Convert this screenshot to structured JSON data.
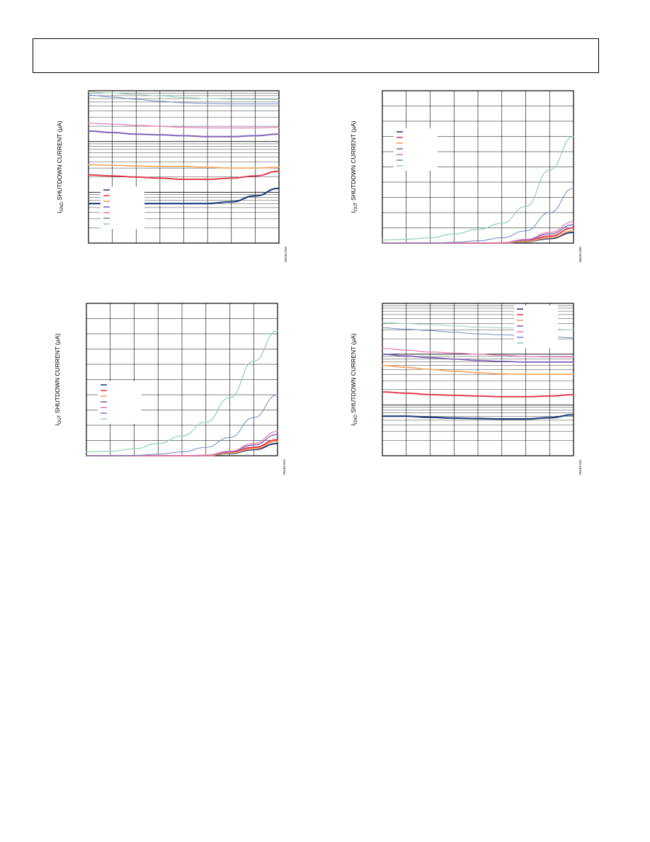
{
  "header": {
    "text": ""
  },
  "chart_data": [
    {
      "id": "chart-1",
      "type": "line",
      "ylabel_main": "I",
      "ylabel_sub": "GND",
      "ylabel_rest": " SHUTDOWN CURRENT (µA)",
      "figure_id": "09434-018",
      "yscale": "log",
      "x": [
        0,
        0.125,
        0.25,
        0.375,
        0.5,
        0.625,
        0.75,
        0.875,
        1
      ],
      "colors": [
        "#1f3c7a",
        "#e23b4e",
        "#f7a25b",
        "#7e63b5",
        "#e679b1",
        "#6f87c0",
        "#94d3b7"
      ],
      "legend_placement": "bottom-left",
      "series": [
        {
          "y": [
            0.06,
            0.06,
            0.06,
            0.06,
            0.06,
            0.06,
            0.065,
            0.085,
            0.12
          ],
          "width": 2.2
        },
        {
          "y": [
            0.22,
            0.21,
            0.2,
            0.19,
            0.18,
            0.18,
            0.19,
            0.21,
            0.26
          ],
          "width": 2
        },
        {
          "y": [
            0.35,
            0.34,
            0.33,
            0.32,
            0.32,
            0.31,
            0.3,
            0.3,
            0.31
          ],
          "width": 1.6
        },
        {
          "y": [
            1.6,
            1.5,
            1.4,
            1.35,
            1.3,
            1.25,
            1.25,
            1.3,
            1.4
          ],
          "width": 2
        },
        {
          "y": [
            2.3,
            2.2,
            2.1,
            2.0,
            1.9,
            1.85,
            1.85,
            1.85,
            1.9
          ],
          "width": 1.2
        },
        {
          "y": [
            8.2,
            7.5,
            6.8,
            6.2,
            5.8,
            5.6,
            5.5,
            5.5,
            5.5
          ],
          "width": 1
        },
        {
          "y": [
            9.5,
            9.0,
            8.5,
            7.9,
            7.4,
            7.0,
            6.8,
            6.7,
            6.7
          ],
          "width": 1
        }
      ]
    },
    {
      "id": "chart-2",
      "type": "line",
      "ylabel_main": "I",
      "ylabel_sub": "OUT",
      "ylabel_rest": " SHUTDOWN CURRENT (µA)",
      "figure_id": "09434-020",
      "yscale": "linear",
      "x": [
        0,
        0.125,
        0.25,
        0.375,
        0.5,
        0.625,
        0.75,
        0.875,
        1
      ],
      "colors": [
        "#1f3c7a",
        "#e23b4e",
        "#f7a25b",
        "#7e63b5",
        "#e679b1",
        "#6f87c0",
        "#94d3b7"
      ],
      "legend_placement": "middle-left",
      "series": [
        {
          "y": [
            0,
            0,
            0,
            0,
            0,
            0,
            0.1,
            0.3,
            0.7
          ],
          "width": 2
        },
        {
          "y": [
            0,
            0,
            0,
            0,
            0,
            0,
            0.15,
            0.45,
            1.0
          ],
          "width": 2
        },
        {
          "y": [
            0,
            0,
            0,
            0,
            0,
            0,
            0.12,
            0.35,
            0.8
          ],
          "width": 1.6
        },
        {
          "y": [
            0,
            0,
            0,
            0,
            0,
            0.02,
            0.2,
            0.6,
            1.2
          ],
          "width": 1.4
        },
        {
          "y": [
            0,
            0,
            0,
            0,
            0,
            0.03,
            0.25,
            0.7,
            1.4
          ],
          "width": 1.2
        },
        {
          "y": [
            0,
            0,
            0,
            0.05,
            0.15,
            0.35,
            0.8,
            2.0,
            3.6
          ],
          "width": 1
        },
        {
          "y": [
            0.2,
            0.25,
            0.35,
            0.6,
            0.9,
            1.3,
            2.4,
            4.8,
            7.0
          ],
          "width": 1.3
        }
      ]
    },
    {
      "id": "chart-3",
      "type": "line",
      "ylabel_main": "I",
      "ylabel_sub": "OUT",
      "ylabel_rest": " SHUTDOWN CURRENT (µA)",
      "figure_id": "09434-019",
      "yscale": "linear",
      "x": [
        0,
        0.125,
        0.25,
        0.375,
        0.5,
        0.625,
        0.75,
        0.875,
        1
      ],
      "colors": [
        "#1f3c7a",
        "#e23b4e",
        "#f7a25b",
        "#7e63b5",
        "#e679b1",
        "#6f87c0",
        "#94d3b7"
      ],
      "legend_placement": "middle-left",
      "series": [
        {
          "y": [
            0,
            0,
            0,
            0,
            0,
            0,
            0.15,
            0.4,
            0.8
          ],
          "width": 2
        },
        {
          "y": [
            0,
            0,
            0,
            0,
            0,
            0,
            0.2,
            0.55,
            1.05
          ],
          "width": 2
        },
        {
          "y": [
            0,
            0,
            0,
            0,
            0,
            0,
            0.17,
            0.45,
            0.95
          ],
          "width": 1.6
        },
        {
          "y": [
            0,
            0,
            0,
            0,
            0,
            0.03,
            0.25,
            0.7,
            1.4
          ],
          "width": 1.4
        },
        {
          "y": [
            0,
            0,
            0,
            0,
            0,
            0.04,
            0.3,
            0.8,
            1.6
          ],
          "width": 1.2
        },
        {
          "y": [
            0,
            0,
            0.02,
            0.1,
            0.25,
            0.55,
            1.2,
            2.5,
            4.0
          ],
          "width": 1
        },
        {
          "y": [
            0.25,
            0.3,
            0.45,
            0.8,
            1.3,
            2.2,
            3.8,
            6.2,
            8.2
          ],
          "width": 1.3
        }
      ]
    },
    {
      "id": "chart-4",
      "type": "line",
      "ylabel_main": "I",
      "ylabel_sub": "GND",
      "ylabel_rest": " SHUTDOWN CURRENT (µA)",
      "figure_id": "09434-021",
      "yscale": "log",
      "x": [
        0,
        0.125,
        0.25,
        0.375,
        0.5,
        0.625,
        0.75,
        0.875,
        1
      ],
      "colors": [
        "#1f3c7a",
        "#e23b4e",
        "#f7a25b",
        "#7e63b5",
        "#e679b1",
        "#6f87c0",
        "#94d3b7"
      ],
      "legend_placement": "top-right",
      "series": [
        {
          "y": [
            0.06,
            0.06,
            0.057,
            0.055,
            0.054,
            0.053,
            0.053,
            0.056,
            0.064
          ],
          "width": 2.2
        },
        {
          "y": [
            0.18,
            0.17,
            0.16,
            0.155,
            0.15,
            0.145,
            0.145,
            0.15,
            0.16
          ],
          "width": 2
        },
        {
          "y": [
            0.6,
            0.55,
            0.5,
            0.46,
            0.43,
            0.41,
            0.4,
            0.4,
            0.4
          ],
          "width": 1.6
        },
        {
          "y": [
            1.0,
            0.92,
            0.85,
            0.8,
            0.75,
            0.72,
            0.7,
            0.7,
            0.7
          ],
          "width": 1.8
        },
        {
          "y": [
            1.3,
            1.2,
            1.1,
            1.05,
            1.0,
            0.95,
            0.9,
            0.88,
            0.88
          ],
          "width": 1.2
        },
        {
          "y": [
            3.3,
            3.1,
            2.9,
            2.7,
            2.5,
            2.4,
            2.3,
            2.2,
            2.1
          ],
          "width": 1
        },
        {
          "y": [
            4.2,
            4.0,
            3.8,
            3.6,
            3.4,
            3.3,
            3.2,
            3.1,
            3.0
          ],
          "width": 1
        }
      ]
    }
  ]
}
